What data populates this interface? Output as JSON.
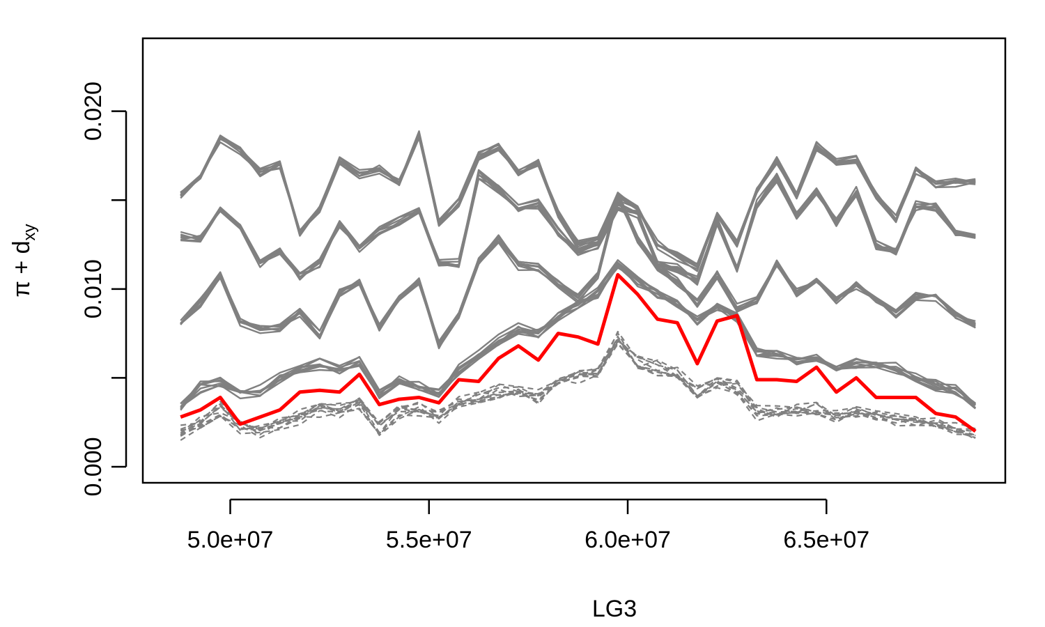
{
  "chart_data": {
    "type": "line",
    "title": "",
    "xlabel": "LG3",
    "ylabel": "π + d",
    "ylabel_sub": "xy",
    "xlim": [
      47800000,
      69500000
    ],
    "ylim": [
      -0.0009,
      0.0241
    ],
    "x_ticks": [
      {
        "value": 50000000,
        "label": "5.0e+07"
      },
      {
        "value": 55000000,
        "label": "5.5e+07"
      },
      {
        "value": 60000000,
        "label": "6.0e+07"
      },
      {
        "value": 65000000,
        "label": "6.5e+07"
      }
    ],
    "y_ticks": [
      {
        "value": 0.0,
        "label": "0.000"
      },
      {
        "value": 0.005,
        "label": ""
      },
      {
        "value": 0.01,
        "label": "0.010"
      },
      {
        "value": 0.015,
        "label": ""
      },
      {
        "value": 0.02,
        "label": "0.020"
      }
    ],
    "colors": {
      "background_series": "#808080",
      "highlight_series": "#ff0000",
      "axes": "#000000"
    },
    "x": [
      48750000,
      49250000,
      49750000,
      50250000,
      50750000,
      51250000,
      51750000,
      52250000,
      52750000,
      53250000,
      53750000,
      54250000,
      54750000,
      55250000,
      55750000,
      56250000,
      56750000,
      57250000,
      57750000,
      58250000,
      58750000,
      59250000,
      59750000,
      60250000,
      60750000,
      61250000,
      61750000,
      62250000,
      62750000,
      63250000,
      63750000,
      64250000,
      64750000,
      65250000,
      65750000,
      66250000,
      66750000,
      67250000,
      67750000,
      68250000,
      68750000
    ],
    "base_profiles": [
      {
        "name": "pi_a",
        "style": "solid",
        "count": 8,
        "spread": 0.00025,
        "values": [
          0.0153,
          0.0163,
          0.0184,
          0.0178,
          0.0165,
          0.0169,
          0.0131,
          0.0145,
          0.0172,
          0.0164,
          0.0167,
          0.016,
          0.0186,
          0.0137,
          0.0148,
          0.0175,
          0.018,
          0.0165,
          0.017,
          0.0142,
          0.0125,
          0.0128,
          0.0152,
          0.0145,
          0.0125,
          0.0118,
          0.0112,
          0.0142,
          0.0125,
          0.0155,
          0.0172,
          0.0152,
          0.018,
          0.0171,
          0.0172,
          0.0152,
          0.0139,
          0.0167,
          0.0158,
          0.016,
          0.016
        ]
      },
      {
        "name": "pi_b",
        "style": "solid",
        "count": 8,
        "spread": 0.00025,
        "values": [
          0.013,
          0.0129,
          0.0145,
          0.0135,
          0.0115,
          0.0122,
          0.0108,
          0.0115,
          0.0137,
          0.0124,
          0.0133,
          0.0138,
          0.0145,
          0.0115,
          0.0115,
          0.0165,
          0.0157,
          0.0145,
          0.0148,
          0.0132,
          0.0122,
          0.0125,
          0.0147,
          0.0143,
          0.0115,
          0.0112,
          0.0105,
          0.0138,
          0.0112,
          0.0148,
          0.0163,
          0.0142,
          0.0155,
          0.0138,
          0.0155,
          0.0125,
          0.0122,
          0.0147,
          0.0147,
          0.0132,
          0.013
        ]
      },
      {
        "name": "pi_c",
        "style": "solid",
        "count": 8,
        "spread": 0.00025,
        "values": [
          0.008,
          0.0092,
          0.0108,
          0.0082,
          0.0078,
          0.0078,
          0.0086,
          0.0074,
          0.0098,
          0.0104,
          0.0078,
          0.0094,
          0.0104,
          0.0068,
          0.0085,
          0.0115,
          0.0128,
          0.0113,
          0.0112,
          0.0102,
          0.0095,
          0.0108,
          0.0152,
          0.0128,
          0.0112,
          0.0104,
          0.0092,
          0.0108,
          0.0089,
          0.0094,
          0.0114,
          0.0098,
          0.0105,
          0.0094,
          0.0102,
          0.0094,
          0.0086,
          0.0096,
          0.0096,
          0.0085,
          0.008
        ]
      },
      {
        "name": "dxy_hi",
        "style": "solid",
        "count": 8,
        "spread": 0.0003,
        "values": [
          0.0035,
          0.0045,
          0.0048,
          0.0042,
          0.0043,
          0.005,
          0.0055,
          0.0058,
          0.0055,
          0.006,
          0.0042,
          0.0048,
          0.0045,
          0.0042,
          0.0055,
          0.0064,
          0.0072,
          0.0078,
          0.0076,
          0.0085,
          0.0092,
          0.0098,
          0.0115,
          0.0105,
          0.0098,
          0.0092,
          0.0082,
          0.009,
          0.0085,
          0.0065,
          0.0064,
          0.006,
          0.0062,
          0.0055,
          0.0058,
          0.0058,
          0.0056,
          0.0051,
          0.0046,
          0.0043,
          0.0035
        ]
      },
      {
        "name": "pi_low",
        "style": "dashed",
        "count": 10,
        "spread": 0.0004,
        "values": [
          0.002,
          0.0026,
          0.0032,
          0.0022,
          0.002,
          0.0024,
          0.0028,
          0.0032,
          0.0032,
          0.0035,
          0.0022,
          0.0031,
          0.0033,
          0.0028,
          0.0036,
          0.0038,
          0.0042,
          0.0042,
          0.0039,
          0.0048,
          0.0052,
          0.0052,
          0.0072,
          0.0058,
          0.0056,
          0.0052,
          0.0042,
          0.0048,
          0.0045,
          0.003,
          0.003,
          0.0032,
          0.0032,
          0.0028,
          0.0031,
          0.0029,
          0.0026,
          0.0026,
          0.0024,
          0.0022,
          0.0018
        ]
      }
    ],
    "highlight": {
      "name": "highlight",
      "values": [
        0.0028,
        0.0032,
        0.0039,
        0.0024,
        0.0028,
        0.0032,
        0.0042,
        0.0043,
        0.0042,
        0.0052,
        0.0035,
        0.0038,
        0.0039,
        0.0036,
        0.0049,
        0.0048,
        0.0061,
        0.0068,
        0.006,
        0.0075,
        0.0073,
        0.0069,
        0.0108,
        0.0097,
        0.0083,
        0.0081,
        0.0058,
        0.0082,
        0.0085,
        0.0049,
        0.0049,
        0.0048,
        0.0056,
        0.0042,
        0.005,
        0.0039,
        0.0039,
        0.0039,
        0.003,
        0.0028,
        0.002
      ]
    }
  }
}
